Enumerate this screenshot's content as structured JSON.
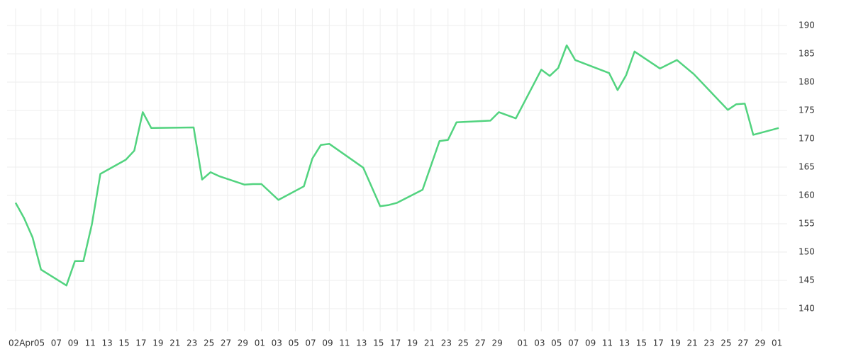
{
  "chart_data": {
    "type": "line",
    "x": [
      "04-02",
      "04-03",
      "04-04",
      "04-05",
      "04-08",
      "04-09",
      "04-10",
      "04-11",
      "04-12",
      "04-15",
      "04-16",
      "04-17",
      "04-18",
      "04-23",
      "04-24",
      "04-25",
      "04-26",
      "04-29",
      "04-30",
      "05-01",
      "05-03",
      "05-06",
      "05-07",
      "05-08",
      "05-09",
      "05-13",
      "05-15",
      "05-16",
      "05-17",
      "05-20",
      "05-22",
      "05-23",
      "05-24",
      "05-28",
      "05-29",
      "05-31",
      "06-03",
      "06-04",
      "06-05",
      "06-06",
      "06-07",
      "06-11",
      "06-12",
      "06-13",
      "06-14",
      "06-17",
      "06-19",
      "06-21",
      "06-25",
      "06-26",
      "06-27",
      "06-28",
      "07-01"
    ],
    "series": [
      {
        "color": "#52d37f",
        "values": [
          158.7,
          156.0,
          152.6,
          146.9,
          144.1,
          148.4,
          148.4,
          154.9,
          163.8,
          166.3,
          167.9,
          174.7,
          171.9,
          172.0,
          162.8,
          164.1,
          163.4,
          161.9,
          162.0,
          162.0,
          159.2,
          161.6,
          166.5,
          168.9,
          169.1,
          164.9,
          158.1,
          158.3,
          158.7,
          161.0,
          169.6,
          169.8,
          172.9,
          173.2,
          174.7,
          173.6,
          182.2,
          181.1,
          182.5,
          186.5,
          183.9,
          181.6,
          178.6,
          181.2,
          185.4,
          182.4,
          183.9,
          181.4,
          175.1,
          176.1,
          176.2,
          170.7,
          171.9
        ]
      }
    ],
    "xlim": [
      "04-01",
      "07-02"
    ],
    "xticks": [
      {
        "value": "04-02",
        "label": "02Apr"
      },
      {
        "value": "04-05",
        "label": "05"
      },
      {
        "value": "04-07",
        "label": "07"
      },
      {
        "value": "04-09",
        "label": "09"
      },
      {
        "value": "04-11",
        "label": "11"
      },
      {
        "value": "04-13",
        "label": "13"
      },
      {
        "value": "04-15",
        "label": "15"
      },
      {
        "value": "04-17",
        "label": "17"
      },
      {
        "value": "04-19",
        "label": "19"
      },
      {
        "value": "04-21",
        "label": "21"
      },
      {
        "value": "04-23",
        "label": "23"
      },
      {
        "value": "04-25",
        "label": "25"
      },
      {
        "value": "04-27",
        "label": "27"
      },
      {
        "value": "04-29",
        "label": "29"
      },
      {
        "value": "05-01",
        "label": "01"
      },
      {
        "value": "05-03",
        "label": "03"
      },
      {
        "value": "05-05",
        "label": "05"
      },
      {
        "value": "05-07",
        "label": "07"
      },
      {
        "value": "05-09",
        "label": "09"
      },
      {
        "value": "05-11",
        "label": "11"
      },
      {
        "value": "05-13",
        "label": "13"
      },
      {
        "value": "05-15",
        "label": "15"
      },
      {
        "value": "05-17",
        "label": "17"
      },
      {
        "value": "05-19",
        "label": "19"
      },
      {
        "value": "05-21",
        "label": "21"
      },
      {
        "value": "05-23",
        "label": "23"
      },
      {
        "value": "05-25",
        "label": "25"
      },
      {
        "value": "05-27",
        "label": "27"
      },
      {
        "value": "05-29",
        "label": "29"
      },
      {
        "value": "06-01",
        "label": "01"
      },
      {
        "value": "06-03",
        "label": "03"
      },
      {
        "value": "06-05",
        "label": "05"
      },
      {
        "value": "06-07",
        "label": "07"
      },
      {
        "value": "06-09",
        "label": "09"
      },
      {
        "value": "06-11",
        "label": "11"
      },
      {
        "value": "06-13",
        "label": "13"
      },
      {
        "value": "06-15",
        "label": "15"
      },
      {
        "value": "06-17",
        "label": "17"
      },
      {
        "value": "06-19",
        "label": "19"
      },
      {
        "value": "06-21",
        "label": "21"
      },
      {
        "value": "06-23",
        "label": "23"
      },
      {
        "value": "06-25",
        "label": "25"
      },
      {
        "value": "06-27",
        "label": "27"
      },
      {
        "value": "06-29",
        "label": "29"
      },
      {
        "value": "07-01",
        "label": "01"
      }
    ],
    "ylim": [
      136,
      193
    ],
    "yticks": [
      140,
      145,
      150,
      155,
      160,
      165,
      170,
      175,
      180,
      185,
      190
    ],
    "grid": true
  }
}
